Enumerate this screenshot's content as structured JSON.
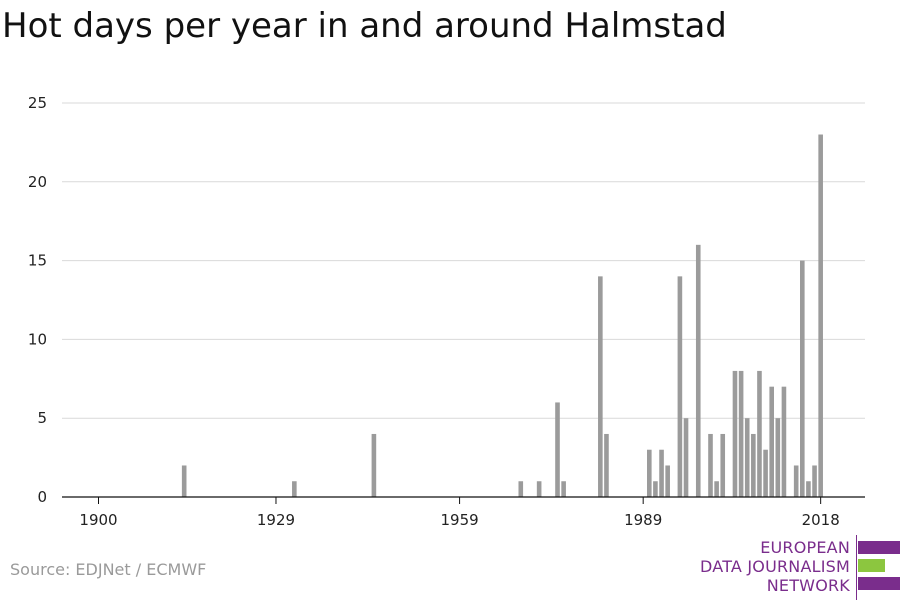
{
  "chart_data": {
    "type": "bar",
    "title": "Hot days per year in and around Halmstad",
    "xlabel": "",
    "ylabel": "",
    "xlim": [
      1900,
      2018
    ],
    "ylim": [
      0,
      25
    ],
    "x_ticks": [
      1900,
      1929,
      1959,
      1989,
      2018
    ],
    "y_ticks": [
      0,
      5,
      10,
      15,
      20,
      25
    ],
    "grid": true,
    "legend": "none",
    "bar_color": "#9b9b9b",
    "x": [
      1914,
      1932,
      1945,
      1969,
      1972,
      1975,
      1976,
      1982,
      1983,
      1990,
      1991,
      1992,
      1993,
      1995,
      1996,
      1998,
      2000,
      2001,
      2002,
      2004,
      2005,
      2006,
      2007,
      2008,
      2009,
      2010,
      2011,
      2012,
      2014,
      2015,
      2016,
      2017,
      2018
    ],
    "values": [
      2,
      1,
      4,
      1,
      1,
      6,
      1,
      14,
      4,
      3,
      1,
      3,
      2,
      14,
      5,
      16,
      4,
      1,
      4,
      8,
      8,
      5,
      4,
      8,
      3,
      7,
      5,
      7,
      2,
      15,
      1,
      2,
      23
    ]
  },
  "source": "Source: EDJNet / ECMWF",
  "logo": {
    "line1": "EUROPEAN",
    "line2": "DATA JOURNALISM",
    "line3": "NETWORK",
    "purple": "#7a2d8c",
    "green": "#8cc63f"
  },
  "colors": {
    "grid": "#d9d9d9",
    "axis": "#111111",
    "tick_text": "#222222"
  }
}
